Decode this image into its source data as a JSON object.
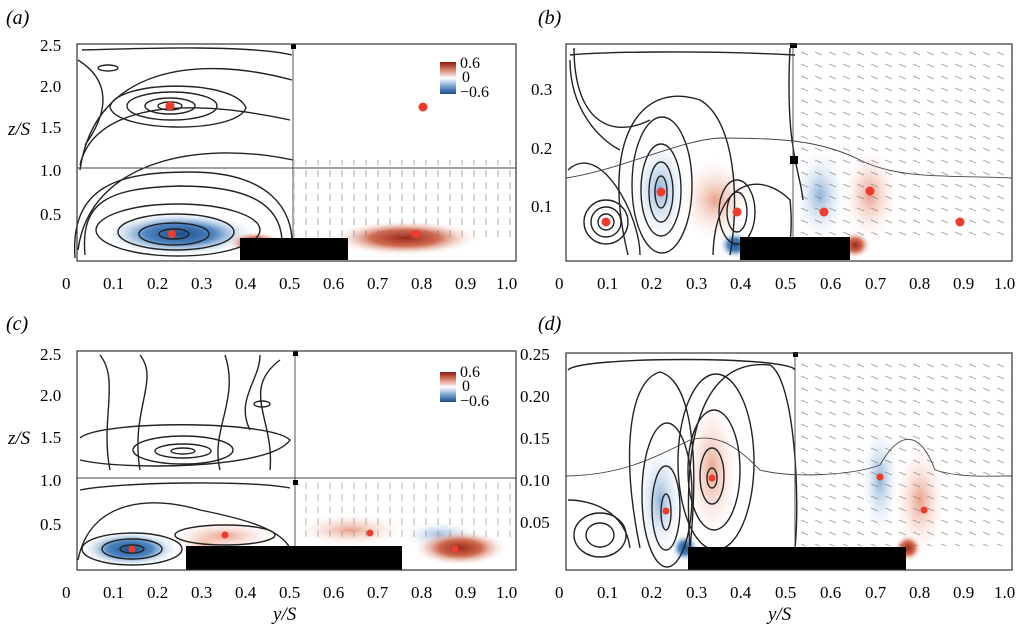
{
  "figure": {
    "panels": [
      {
        "id": "a",
        "label": "(a)",
        "y_ticks": [
          "2.5",
          "2.0",
          "1.5",
          "1.0",
          "0.5"
        ],
        "x_ticks": [
          "0",
          "0.1",
          "0.2",
          "0.3",
          "0.4",
          "0.5",
          "0.6",
          "0.7",
          "0.8",
          "0.9",
          "1.0"
        ],
        "ylabel": "z/S",
        "colorbar": {
          "max": "0.6",
          "mid": "0",
          "min": "−0.6"
        }
      },
      {
        "id": "b",
        "label": "(b)",
        "y_ticks": [
          "0.3",
          "0.2",
          "0.1"
        ],
        "x_ticks": [
          "0",
          "0.1",
          "0.2",
          "0.3",
          "0.4",
          "0.5",
          "0.6",
          "0.7",
          "0.8",
          "0.9",
          "1.0"
        ]
      },
      {
        "id": "c",
        "label": "(c)",
        "y_ticks": [
          "2.5",
          "2.0",
          "1.5",
          "1.0",
          "0.5"
        ],
        "x_ticks": [
          "0",
          "0.1",
          "0.2",
          "0.3",
          "0.4",
          "0.5",
          "0.6",
          "0.7",
          "0.8",
          "0.9",
          "1.0"
        ],
        "ylabel": "z/S",
        "xlabel": "y/S",
        "colorbar": {
          "max": "0.6",
          "mid": "0",
          "min": "−0.6"
        }
      },
      {
        "id": "d",
        "label": "(d)",
        "y_ticks": [
          "0.25",
          "0.20",
          "0.15",
          "0.10",
          "0.05"
        ],
        "x_ticks": [
          "0",
          "0.1",
          "0.2",
          "0.3",
          "0.4",
          "0.5",
          "0.6",
          "0.7",
          "0.8",
          "0.9",
          "1.0"
        ],
        "xlabel": "y/S"
      }
    ],
    "colors": {
      "positive": "#b8432f",
      "negative": "#2d63a6",
      "marker": "#ef3b2c",
      "block": "#000000"
    }
  }
}
